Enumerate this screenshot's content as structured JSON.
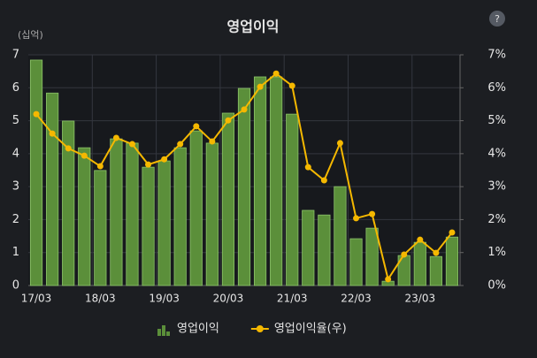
{
  "chart_data": {
    "type": "bar",
    "title": "영업이익",
    "y_unit": "(십억)",
    "categories": [
      "17/03",
      null,
      null,
      null,
      "18/03",
      null,
      null,
      null,
      "19/03",
      null,
      null,
      null,
      "20/03",
      null,
      null,
      null,
      "21/03",
      null,
      null,
      null,
      "22/03",
      null,
      null,
      null,
      "23/03",
      null,
      null
    ],
    "series": [
      {
        "name": "영업이익",
        "type": "bar",
        "color": "#5b8f3a",
        "values": [
          6.84,
          5.84,
          4.99,
          4.18,
          3.49,
          4.45,
          4.32,
          3.59,
          3.78,
          4.18,
          4.69,
          4.32,
          5.23,
          5.98,
          6.33,
          6.33,
          5.2,
          2.28,
          2.14,
          3.0,
          1.42,
          1.74,
          0.13,
          0.91,
          1.31,
          0.88,
          1.47
        ]
      },
      {
        "name": "영업이익율(우)",
        "type": "line",
        "axis": "y2",
        "color": "#f5b800",
        "values": [
          5.2,
          4.61,
          4.16,
          3.94,
          3.62,
          4.48,
          4.29,
          3.67,
          3.83,
          4.29,
          4.83,
          4.37,
          5.01,
          5.34,
          6.03,
          6.43,
          6.06,
          3.59,
          3.19,
          4.32,
          2.04,
          2.17,
          0.19,
          0.94,
          1.39,
          0.99,
          1.61
        ]
      }
    ],
    "ylim": [
      0,
      7
    ],
    "yticks": [
      0,
      1,
      2,
      3,
      4,
      5,
      6,
      7
    ],
    "y2lim": [
      0,
      7
    ],
    "y2ticks": [
      {
        "value": 0,
        "label": "0%"
      },
      {
        "value": 1,
        "label": "1%"
      },
      {
        "value": 2,
        "label": "2%"
      },
      {
        "value": 3,
        "label": "3%"
      },
      {
        "value": 4,
        "label": "4%"
      },
      {
        "value": 5,
        "label": "5%"
      },
      {
        "value": 6,
        "label": "6%"
      },
      {
        "value": 7,
        "label": "7%"
      }
    ],
    "grid": true,
    "legend": "bottom",
    "help_icon": "?"
  }
}
